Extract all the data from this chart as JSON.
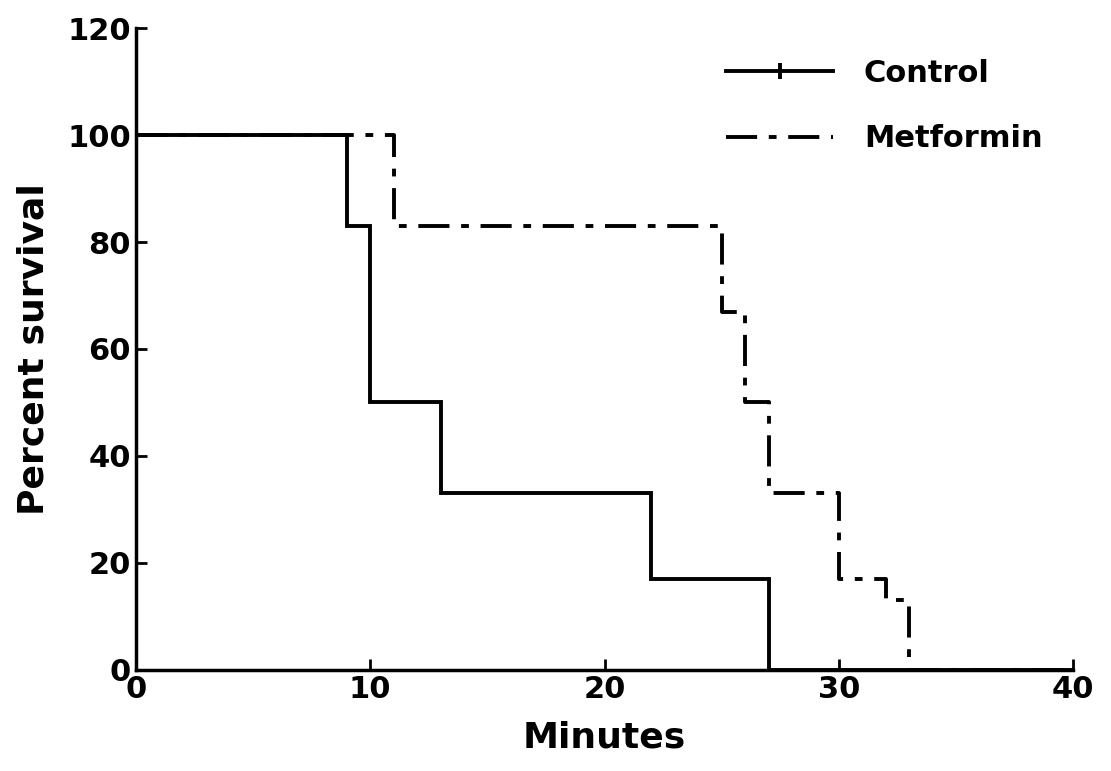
{
  "control_x": [
    0,
    9,
    9,
    10,
    10,
    13,
    13,
    15,
    15,
    22,
    22,
    23,
    23,
    27,
    27,
    28,
    28,
    40
  ],
  "control_y": [
    100,
    100,
    83,
    83,
    50,
    50,
    33,
    33,
    33,
    33,
    17,
    17,
    17,
    17,
    0,
    0,
    0,
    0
  ],
  "metformin_x": [
    0,
    11,
    11,
    13,
    13,
    25,
    25,
    26,
    26,
    27,
    27,
    28,
    28,
    30,
    30,
    32,
    32,
    33,
    33,
    40
  ],
  "metformin_y": [
    100,
    100,
    83,
    83,
    83,
    83,
    67,
    67,
    50,
    50,
    33,
    33,
    33,
    33,
    17,
    17,
    13,
    13,
    0,
    0
  ],
  "xlabel": "Minutes",
  "ylabel": "Percent survival",
  "xlim": [
    0,
    40
  ],
  "ylim": [
    0,
    120
  ],
  "yticks": [
    0,
    20,
    40,
    60,
    80,
    100,
    120
  ],
  "xticks": [
    0,
    10,
    20,
    30,
    40
  ],
  "legend_control": "Control",
  "legend_metformin": "Metformin",
  "line_color": "#000000",
  "linewidth": 2.8,
  "fontsize_label": 26,
  "fontsize_tick": 22,
  "fontsize_legend": 22
}
